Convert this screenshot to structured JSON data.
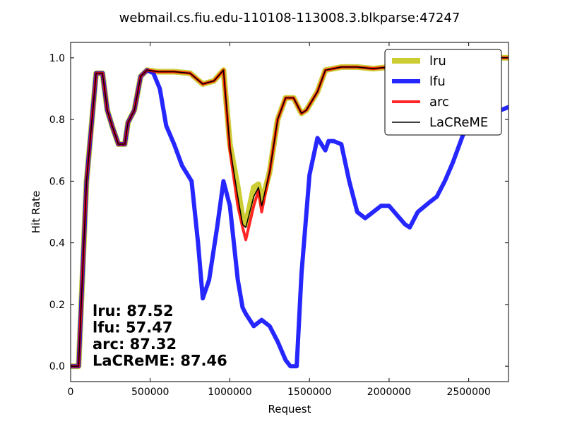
{
  "chart_data": {
    "type": "line",
    "title": "webmail.cs.fiu.edu-110108-113008.3.blkparse:47247",
    "xlabel": "Request",
    "ylabel": "Hit Rate",
    "xlim": [
      0,
      2750000
    ],
    "ylim": [
      -0.05,
      1.05
    ],
    "x_ticks": [
      0,
      500000,
      1000000,
      1500000,
      2000000,
      2500000
    ],
    "x_tick_labels": [
      "0",
      "500000",
      "1000000",
      "1500000",
      "2000000",
      "2500000"
    ],
    "y_ticks": [
      0.0,
      0.2,
      0.4,
      0.6,
      0.8,
      1.0
    ],
    "y_tick_labels": [
      "0.0",
      "0.2",
      "0.4",
      "0.6",
      "0.8",
      "1.0"
    ],
    "grid": false,
    "legend_position": "top-right",
    "series": [
      {
        "name": "lru",
        "color": "#bfbf00",
        "width": 8,
        "opacity": 0.8,
        "x": [
          0,
          50000,
          100000,
          160000,
          200000,
          230000,
          260000,
          300000,
          340000,
          360000,
          400000,
          440000,
          480000,
          550000,
          650000,
          750000,
          830000,
          900000,
          960000,
          1000000,
          1050000,
          1080000,
          1100000,
          1150000,
          1180000,
          1200000,
          1250000,
          1300000,
          1350000,
          1400000,
          1450000,
          1480000,
          1550000,
          1600000,
          1700000,
          1800000,
          1900000,
          2000000,
          2100000,
          2200000,
          2300000,
          2400000,
          2500000,
          2600000,
          2700000,
          2750000
        ],
        "y": [
          0.0,
          0.0,
          0.6,
          0.95,
          0.95,
          0.83,
          0.78,
          0.72,
          0.72,
          0.79,
          0.83,
          0.94,
          0.96,
          0.955,
          0.955,
          0.95,
          0.915,
          0.925,
          0.96,
          0.72,
          0.58,
          0.48,
          0.46,
          0.58,
          0.59,
          0.53,
          0.63,
          0.8,
          0.87,
          0.87,
          0.82,
          0.83,
          0.89,
          0.96,
          0.97,
          0.97,
          0.965,
          0.97,
          0.975,
          0.975,
          0.97,
          0.965,
          0.965,
          0.98,
          1.0,
          1.0
        ]
      },
      {
        "name": "lfu",
        "color": "#0000ff",
        "width": 6,
        "opacity": 0.85,
        "x": [
          0,
          50000,
          100000,
          160000,
          200000,
          230000,
          260000,
          300000,
          340000,
          360000,
          400000,
          440000,
          480000,
          520000,
          560000,
          600000,
          650000,
          700000,
          760000,
          800000,
          830000,
          870000,
          920000,
          960000,
          1000000,
          1050000,
          1080000,
          1100000,
          1150000,
          1200000,
          1250000,
          1300000,
          1350000,
          1380000,
          1420000,
          1450000,
          1500000,
          1550000,
          1600000,
          1620000,
          1650000,
          1700000,
          1750000,
          1800000,
          1850000,
          1900000,
          1950000,
          2000000,
          2050000,
          2100000,
          2130000,
          2180000,
          2250000,
          2300000,
          2350000,
          2400000,
          2450000,
          2500000,
          2550000,
          2600000,
          2650000,
          2700000,
          2750000
        ],
        "y": [
          0.0,
          0.0,
          0.6,
          0.95,
          0.95,
          0.83,
          0.78,
          0.72,
          0.72,
          0.79,
          0.83,
          0.94,
          0.96,
          0.95,
          0.9,
          0.78,
          0.72,
          0.65,
          0.6,
          0.4,
          0.22,
          0.28,
          0.45,
          0.6,
          0.52,
          0.28,
          0.19,
          0.17,
          0.13,
          0.15,
          0.13,
          0.08,
          0.02,
          0.0,
          0.0,
          0.3,
          0.62,
          0.74,
          0.7,
          0.73,
          0.73,
          0.72,
          0.6,
          0.5,
          0.48,
          0.5,
          0.52,
          0.52,
          0.49,
          0.46,
          0.45,
          0.5,
          0.53,
          0.55,
          0.6,
          0.66,
          0.73,
          0.8,
          0.83,
          0.83,
          0.83,
          0.83,
          0.84
        ]
      },
      {
        "name": "arc",
        "color": "#ff0000",
        "width": 4,
        "opacity": 0.85,
        "x": [
          0,
          50000,
          100000,
          160000,
          200000,
          230000,
          260000,
          300000,
          340000,
          360000,
          400000,
          440000,
          480000,
          550000,
          650000,
          750000,
          830000,
          900000,
          960000,
          1000000,
          1050000,
          1080000,
          1100000,
          1150000,
          1180000,
          1200000,
          1250000,
          1300000,
          1350000,
          1400000,
          1450000,
          1480000,
          1550000,
          1600000,
          1700000,
          1800000,
          1900000,
          2000000,
          2100000,
          2200000,
          2300000,
          2400000,
          2500000,
          2600000,
          2700000,
          2750000
        ],
        "y": [
          0.0,
          0.0,
          0.6,
          0.95,
          0.95,
          0.83,
          0.78,
          0.72,
          0.72,
          0.79,
          0.83,
          0.94,
          0.96,
          0.955,
          0.955,
          0.95,
          0.915,
          0.925,
          0.96,
          0.7,
          0.52,
          0.45,
          0.41,
          0.52,
          0.57,
          0.5,
          0.63,
          0.8,
          0.87,
          0.87,
          0.82,
          0.83,
          0.89,
          0.96,
          0.97,
          0.97,
          0.965,
          0.97,
          0.975,
          0.975,
          0.97,
          0.965,
          0.965,
          0.98,
          1.0,
          1.0
        ]
      },
      {
        "name": "LaCReME",
        "color": "#000000",
        "width": 1.5,
        "opacity": 1,
        "x": [
          0,
          50000,
          100000,
          160000,
          200000,
          230000,
          260000,
          300000,
          340000,
          360000,
          400000,
          440000,
          480000,
          550000,
          650000,
          750000,
          830000,
          900000,
          960000,
          1000000,
          1050000,
          1080000,
          1100000,
          1150000,
          1180000,
          1200000,
          1250000,
          1300000,
          1350000,
          1400000,
          1450000,
          1480000,
          1550000,
          1600000,
          1700000,
          1800000,
          1900000,
          2000000,
          2100000,
          2200000,
          2300000,
          2400000,
          2500000,
          2600000,
          2700000,
          2750000
        ],
        "y": [
          0.0,
          0.0,
          0.6,
          0.95,
          0.95,
          0.83,
          0.78,
          0.72,
          0.72,
          0.79,
          0.83,
          0.94,
          0.96,
          0.955,
          0.955,
          0.95,
          0.915,
          0.925,
          0.96,
          0.71,
          0.55,
          0.46,
          0.45,
          0.55,
          0.58,
          0.52,
          0.63,
          0.8,
          0.87,
          0.87,
          0.82,
          0.83,
          0.89,
          0.96,
          0.97,
          0.97,
          0.965,
          0.97,
          0.975,
          0.975,
          0.97,
          0.965,
          0.965,
          0.98,
          1.0,
          1.0
        ]
      }
    ],
    "annotations": [
      "lru:  87.52",
      "lfu:  57.47",
      "arc:  87.32",
      "LaCReME:  87.46"
    ]
  }
}
